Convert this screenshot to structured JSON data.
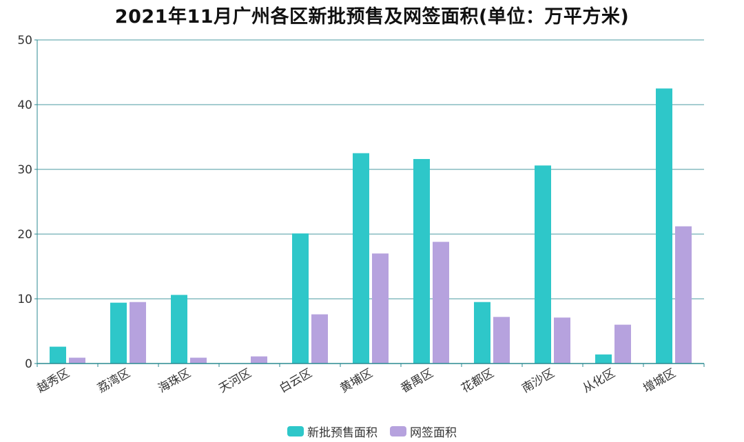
{
  "colors": {
    "presale": "#2ec7c9",
    "signed": "#b6a2de",
    "grid": "#4a9aa0",
    "axis": "#2a8a90"
  },
  "chart_data": {
    "type": "bar",
    "title": "2021年11月广州各区新批预售及网签面积(单位：万平方米)",
    "categories": [
      "越秀区",
      "荔湾区",
      "海珠区",
      "天河区",
      "白云区",
      "黄埔区",
      "番禺区",
      "花都区",
      "南沙区",
      "从化区",
      "增城区"
    ],
    "series": [
      {
        "name": "新批预售面积",
        "values": [
          2.6,
          9.4,
          10.6,
          0,
          20.1,
          32.5,
          31.6,
          9.5,
          30.6,
          1.4,
          42.5
        ]
      },
      {
        "name": "网签面积",
        "values": [
          0.9,
          9.5,
          0.9,
          1.1,
          7.6,
          17.0,
          18.8,
          7.2,
          7.1,
          6.0,
          21.2
        ]
      }
    ],
    "ylim": [
      0,
      50
    ],
    "yticks": [
      0,
      10,
      20,
      30,
      40,
      50
    ],
    "grid": true,
    "legend_position": "bottom"
  }
}
